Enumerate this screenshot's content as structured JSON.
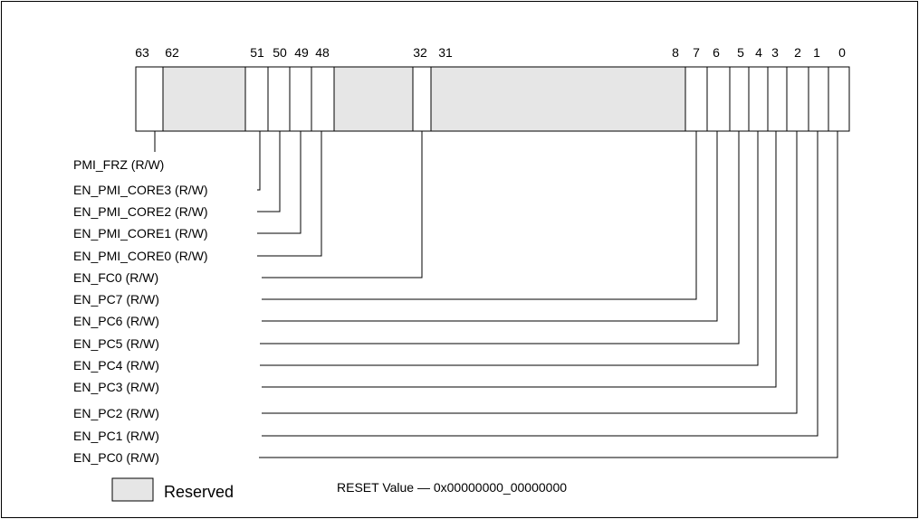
{
  "bit_numbers": [
    "63",
    "62",
    "51",
    "50",
    "49",
    "48",
    "32",
    "31",
    "8",
    "7",
    "6",
    "5",
    "4",
    "3",
    "2",
    "1",
    "0"
  ],
  "reserved_colors": {
    "reserved": "#e6e6e6",
    "frame": "#000000"
  },
  "fields": [
    {
      "label": "PMI_FRZ (R/W)"
    },
    {
      "label": "EN_PMI_CORE3 (R/W)"
    },
    {
      "label": "EN_PMI_CORE2 (R/W)"
    },
    {
      "label": "EN_PMI_CORE1 (R/W)"
    },
    {
      "label": "EN_PMI_CORE0 (R/W)"
    },
    {
      "label": "EN_FC0 (R/W)"
    },
    {
      "label": "EN_PC7 (R/W)"
    },
    {
      "label": "EN_PC6 (R/W)"
    },
    {
      "label": "EN_PC5 (R/W)"
    },
    {
      "label": "EN_PC4 (R/W)"
    },
    {
      "label": "EN_PC3 (R/W)"
    },
    {
      "label": "EN_PC2 (R/W)"
    },
    {
      "label": "EN_PC1 (R/W)"
    },
    {
      "label": "EN_PC0 (R/W)"
    }
  ],
  "legend": {
    "reserved_label": "Reserved"
  },
  "reset_value": "RESET Value — 0x00000000_00000000"
}
